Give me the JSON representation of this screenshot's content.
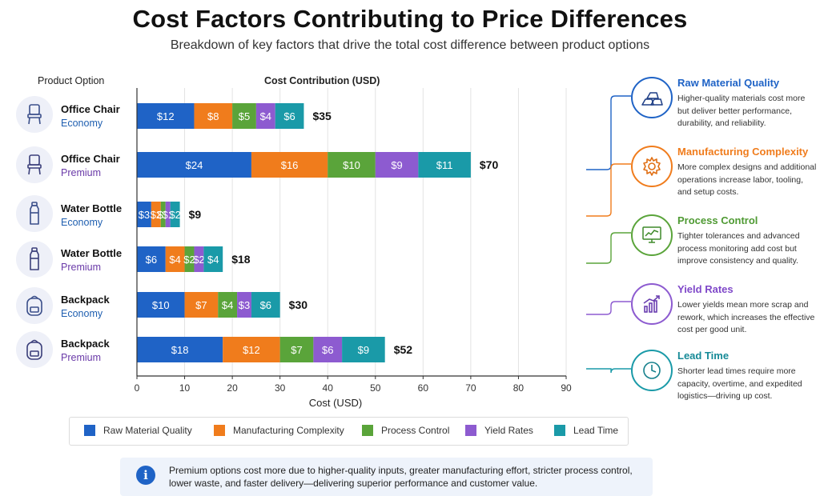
{
  "header": {
    "title": "Cost Factors Contributing to Price Differences",
    "subtitle": "Breakdown of key factors that drive the total cost difference between product options"
  },
  "columns": {
    "product_option": "Product Option",
    "cost_contribution": "Cost Contribution (USD)"
  },
  "products": [
    {
      "name": "Office Chair",
      "tier": "Economy",
      "icon": "office-chair-icon"
    },
    {
      "name": "Office Chair",
      "tier": "Premium",
      "icon": "office-chair-icon"
    },
    {
      "name": "Water Bottle",
      "tier": "Economy",
      "icon": "water-bottle-icon"
    },
    {
      "name": "Water Bottle",
      "tier": "Premium",
      "icon": "water-bottle-icon"
    },
    {
      "name": "Backpack",
      "tier": "Economy",
      "icon": "backpack-icon"
    },
    {
      "name": "Backpack",
      "tier": "Premium",
      "icon": "backpack-icon"
    }
  ],
  "chart_data": {
    "type": "bar",
    "orientation": "horizontal",
    "stacked": true,
    "title": "Cost Contribution (USD)",
    "xlabel": "Cost (USD)",
    "ylabel": "Product Option",
    "categories": [
      "Office Chair Economy",
      "Office Chair Premium",
      "Water Bottle Economy",
      "Water Bottle Premium",
      "Backpack Economy",
      "Backpack Premium"
    ],
    "series": [
      {
        "name": "Raw Material Quality",
        "color": "#1f63c6",
        "values": [
          12,
          24,
          3,
          6,
          10,
          18
        ],
        "labels": [
          "$12",
          "$24",
          "$3",
          "$6",
          "$10",
          "$18"
        ]
      },
      {
        "name": "Manufacturing Complexity",
        "color": "#f07c1c",
        "values": [
          8,
          16,
          2,
          4,
          7,
          12
        ],
        "labels": [
          "$8",
          "$16",
          "$2",
          "$4",
          "$7",
          "$12"
        ]
      },
      {
        "name": "Process Control",
        "color": "#5aa43a",
        "values": [
          5,
          10,
          1,
          2,
          4,
          7
        ],
        "labels": [
          "$5",
          "$10",
          "$1",
          "$2",
          "$4",
          "$7"
        ]
      },
      {
        "name": "Yield Rates",
        "color": "#8d5bd0",
        "values": [
          4,
          9,
          1,
          2,
          3,
          6
        ],
        "labels": [
          "$4",
          "$9",
          "$1",
          "$2",
          "$3",
          "$6"
        ]
      },
      {
        "name": "Lead Time",
        "color": "#1a9aa8",
        "values": [
          6,
          11,
          2,
          4,
          6,
          9
        ],
        "labels": [
          "$6",
          "$11",
          "$2",
          "$4",
          "$6",
          "$9"
        ]
      }
    ],
    "totals": [
      "$35",
      "$70",
      "$9",
      "$18",
      "$30",
      "$52"
    ],
    "xlim": [
      0,
      90
    ],
    "xticks": [
      0,
      10,
      20,
      30,
      40,
      50,
      60,
      70,
      80,
      90
    ],
    "grid": true,
    "legend_position": "bottom"
  },
  "factors": [
    {
      "title": "Raw Material Quality",
      "color": "#1f63c6",
      "icon": "ingots-icon",
      "desc": "Higher-quality materials cost more but deliver better performance, durability, and reliability."
    },
    {
      "title": "Manufacturing Complexity",
      "color": "#f07c1c",
      "icon": "gear-icon",
      "desc": "More complex designs and additional operations increase labor, tooling, and setup costs."
    },
    {
      "title": "Process Control",
      "color": "#5aa43a",
      "icon": "monitor-chart-icon",
      "desc": "Tighter tolerances and advanced process monitoring add cost but improve consistency and quality."
    },
    {
      "title": "Yield Rates",
      "color": "#8d5bd0",
      "icon": "trend-chart-icon",
      "desc": "Lower yields mean more scrap and rework, which increases the effective cost per good unit."
    },
    {
      "title": "Lead Time",
      "color": "#1a9aa8",
      "icon": "clock-icon",
      "desc": "Shorter lead times require more capacity, overtime, and expedited logistics—driving up cost."
    }
  ],
  "info": {
    "icon": "info-icon",
    "text": "Premium options cost more due to higher-quality inputs, greater manufacturing effort, stricter process control, lower waste, and faster delivery—delivering superior performance and customer value."
  }
}
